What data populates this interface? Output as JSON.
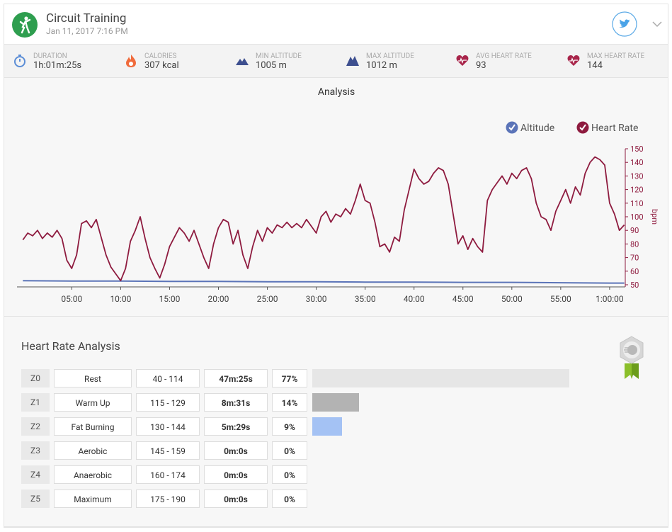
{
  "header": {
    "title": "Circuit Training",
    "date": "Jan 11, 2017 7:16 PM"
  },
  "stats": [
    {
      "label": "DURATION",
      "value": "1h:01m:25s"
    },
    {
      "label": "CALORIES",
      "value": "307 kcal"
    },
    {
      "label": "MIN ALTITUDE",
      "value": "1005 m"
    },
    {
      "label": "MAX ALTITUDE",
      "value": "1012 m"
    },
    {
      "label": "AVG HEART RATE",
      "value": "93"
    },
    {
      "label": "MAX HEART RATE",
      "value": "144"
    }
  ],
  "chart_data": {
    "type": "line",
    "title": "Analysis",
    "y_label": "bpm",
    "legend": "top-right",
    "xlim": [
      -0.6,
      61.6
    ],
    "xticks": [
      {
        "value": 5,
        "label": "05:00"
      },
      {
        "value": 10,
        "label": "10:00"
      },
      {
        "value": 15,
        "label": "15:00"
      },
      {
        "value": 20,
        "label": "20:00"
      },
      {
        "value": 25,
        "label": "25:00"
      },
      {
        "value": 30,
        "label": "30:00"
      },
      {
        "value": 35,
        "label": "35:00"
      },
      {
        "value": 40,
        "label": "40:00"
      },
      {
        "value": 45,
        "label": "45:00"
      },
      {
        "value": 50,
        "label": "50:00"
      },
      {
        "value": 55,
        "label": "55:00"
      },
      {
        "value": 60,
        "label": "1:00:00"
      }
    ],
    "ylim": [
      50,
      150
    ],
    "yticks": [
      50,
      60,
      70,
      80,
      90,
      100,
      110,
      120,
      130,
      140,
      150
    ],
    "y2lim": [
      1000,
      1400
    ],
    "series": [
      {
        "name": "Altitude",
        "color": "#5b74b8",
        "axis": "y2",
        "x": [
          0,
          5,
          10,
          15,
          20,
          25,
          30,
          35,
          40,
          45,
          50,
          55,
          60,
          61.5
        ],
        "values": [
          1012,
          1011,
          1011,
          1010,
          1010,
          1009,
          1009,
          1008,
          1008,
          1007,
          1007,
          1006,
          1005,
          1005
        ]
      },
      {
        "name": "Heart Rate",
        "color": "#8e1b3f",
        "x": [
          0,
          0.5,
          1,
          1.5,
          2,
          2.5,
          3,
          3.5,
          4,
          4.5,
          5,
          5.5,
          6,
          6.5,
          7,
          7.5,
          8,
          8.5,
          9,
          9.5,
          10,
          10.5,
          11,
          11.5,
          12,
          12.5,
          13,
          13.5,
          14,
          14.5,
          15,
          15.5,
          16,
          16.5,
          17,
          17.5,
          18,
          18.5,
          19,
          19.5,
          20,
          20.5,
          21,
          21.5,
          22,
          22.5,
          23,
          23.5,
          24,
          24.5,
          25,
          25.5,
          26,
          26.5,
          27,
          27.5,
          28,
          28.5,
          29,
          29.5,
          30,
          30.5,
          31,
          31.5,
          32,
          32.5,
          33,
          33.5,
          34,
          34.5,
          35,
          35.5,
          36,
          36.5,
          37,
          37.5,
          38,
          38.5,
          39,
          39.5,
          40,
          40.5,
          41,
          41.5,
          42,
          42.5,
          43,
          43.5,
          44,
          44.5,
          45,
          45.5,
          46,
          46.5,
          47,
          47.5,
          48,
          48.5,
          49,
          49.5,
          50,
          50.5,
          51,
          51.5,
          52,
          52.5,
          53,
          53.5,
          54,
          54.5,
          55,
          55.5,
          56,
          56.5,
          57,
          57.5,
          58,
          58.5,
          59,
          59.5,
          60,
          60.5,
          61,
          61.5
        ],
        "values": [
          83,
          88,
          86,
          90,
          84,
          88,
          85,
          90,
          84,
          68,
          62,
          72,
          95,
          97,
          92,
          98,
          85,
          72,
          63,
          58,
          53,
          62,
          82,
          90,
          100,
          84,
          70,
          62,
          55,
          65,
          78,
          85,
          92,
          88,
          82,
          90,
          80,
          70,
          62,
          80,
          92,
          98,
          96,
          80,
          90,
          72,
          62,
          78,
          90,
          82,
          92,
          88,
          94,
          92,
          96,
          92,
          95,
          92,
          98,
          93,
          88,
          100,
          104,
          96,
          102,
          100,
          106,
          102,
          112,
          124,
          112,
          110,
          96,
          78,
          80,
          74,
          85,
          82,
          105,
          120,
          135,
          128,
          124,
          126,
          132,
          136,
          134,
          124,
          102,
          80,
          86,
          76,
          84,
          78,
          74,
          112,
          120,
          125,
          130,
          124,
          132,
          128,
          134,
          136,
          128,
          110,
          100,
          98,
          90,
          104,
          112,
          120,
          110,
          122,
          116,
          132,
          140,
          144,
          142,
          138,
          110,
          102,
          90,
          94
        ]
      }
    ]
  },
  "heart_rate_analysis": {
    "title": "Heart Rate Analysis",
    "zones": [
      {
        "zone": "Z0",
        "name": "Rest",
        "range": "40 - 114",
        "time": "47m:25s",
        "percent": 77,
        "percent_label": "77%",
        "color": "#e6e6e6"
      },
      {
        "zone": "Z1",
        "name": "Warm Up",
        "range": "115 - 129",
        "time": "8m:31s",
        "percent": 14,
        "percent_label": "14%",
        "color": "#b3b3b3"
      },
      {
        "zone": "Z2",
        "name": "Fat Burning",
        "range": "130 - 144",
        "time": "5m:29s",
        "percent": 9,
        "percent_label": "9%",
        "color": "#a4c2f4"
      },
      {
        "zone": "Z3",
        "name": "Aerobic",
        "range": "145 - 159",
        "time": "0m:0s",
        "percent": 0,
        "percent_label": "0%",
        "color": "#a4c2f4"
      },
      {
        "zone": "Z4",
        "name": "Anaerobic",
        "range": "160 - 174",
        "time": "0m:0s",
        "percent": 0,
        "percent_label": "0%",
        "color": "#a4c2f4"
      },
      {
        "zone": "Z5",
        "name": "Maximum",
        "range": "175 - 190",
        "time": "0m:0s",
        "percent": 0,
        "percent_label": "0%",
        "color": "#a4c2f4"
      }
    ]
  }
}
